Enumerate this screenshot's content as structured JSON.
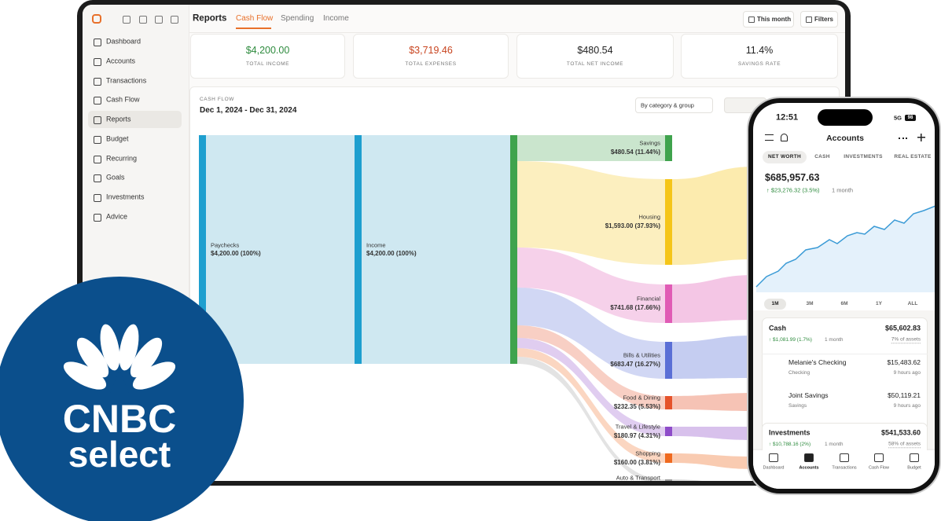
{
  "app": {
    "tabs": [
      "Reports",
      "Cash Flow",
      "Spending",
      "Income"
    ],
    "buttons": [
      "This month",
      "Filters"
    ]
  },
  "sidebar": {
    "items": [
      "Dashboard",
      "Accounts",
      "Transactions",
      "Cash Flow",
      "Reports",
      "Budget",
      "Recurring",
      "Goals",
      "Investments",
      "Advice"
    ]
  },
  "stats": [
    {
      "value": "$4,200.00",
      "label": "TOTAL INCOME"
    },
    {
      "value": "$3,719.46",
      "label": "TOTAL EXPENSES"
    },
    {
      "value": "$480.54",
      "label": "TOTAL NET INCOME"
    },
    {
      "value": "11.4%",
      "label": "SAVINGS RATE"
    }
  ],
  "cash_flow": {
    "kicker": "CASH FLOW",
    "range": "Dec 1, 2024 - Dec 31, 2024",
    "group_by": "By category & group",
    "sources": [
      {
        "name": "Paychecks",
        "amount": "$4,200.00 (100%)"
      },
      {
        "name": "Income",
        "amount": "$4,200.00 (100%)"
      }
    ],
    "categories": [
      {
        "name": "Savings",
        "amount": "$480.54 (11.44%)"
      },
      {
        "name": "Housing",
        "amount": "$1,593.00 (37.93%)"
      },
      {
        "name": "Financial",
        "amount": "$741.68 (17.66%)"
      },
      {
        "name": "Bills & Utilities",
        "amount": "$683.47 (16.27%)"
      },
      {
        "name": "Food & Dining",
        "amount": "$232.35 (5.53%)"
      },
      {
        "name": "Travel & Lifestyle",
        "amount": "$180.97 (4.31%)"
      },
      {
        "name": "Shopping",
        "amount": "$160.00 (3.81%)"
      },
      {
        "name": "Auto & Transport"
      }
    ]
  },
  "phone": {
    "time": "12:51",
    "network": "5G",
    "battery": "98",
    "title": "Accounts",
    "tabs": [
      "NET WORTH",
      "CASH",
      "INVESTMENTS",
      "REAL ESTATE"
    ],
    "net_worth": "$685,957.63",
    "change": "↑ $23,276.32 (3.5%)",
    "period": "1 month",
    "ranges": [
      "1M",
      "3M",
      "6M",
      "1Y",
      "ALL"
    ],
    "groups": [
      {
        "name": "Cash",
        "total": "$65,602.83",
        "change": "↑ $1,081.99 (1.7%)",
        "period": "1 month",
        "share": "7% of assets",
        "accounts": [
          {
            "logo": "citi",
            "name": "Melanie's Checking",
            "type": "Checking",
            "balance": "$15,483.62",
            "updated": "9 hours ago"
          },
          {
            "name": "Joint Savings",
            "type": "Savings",
            "balance": "$50,119.21",
            "updated": "9 hours ago"
          }
        ]
      },
      {
        "name": "Investments",
        "total": "$541,533.60",
        "change": "↑ $10,788.16 (2%)",
        "period": "1 month",
        "share": "58% of assets"
      }
    ],
    "nav": [
      "Dashboard",
      "Accounts",
      "Transactions",
      "Cash Flow",
      "Budget"
    ]
  },
  "badge": {
    "brand": "CNBC",
    "product": "select"
  }
}
